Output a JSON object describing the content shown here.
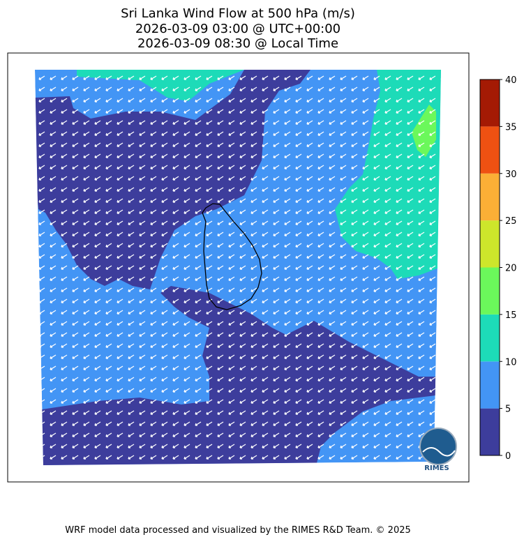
{
  "title": [
    "Sri Lanka Wind Flow at 500 hPa (m/s)",
    "2026-03-09 03:00 @ UTC+00:00",
    "2026-03-09 08:30 @ Local Time"
  ],
  "colorbar": {
    "lim": [
      0,
      40
    ],
    "ticks": [
      0,
      5,
      10,
      15,
      20,
      25,
      30,
      35,
      40
    ],
    "colors": [
      "#3d3d9c",
      "#4395f5",
      "#1ddbb8",
      "#6bf85b",
      "#cde62b",
      "#fbaf36",
      "#ef5112",
      "#a41a04"
    ]
  },
  "logo": "RIMES",
  "footer": "WRF model data processed and visualized by the RIMES R&D Team. © 2025"
}
